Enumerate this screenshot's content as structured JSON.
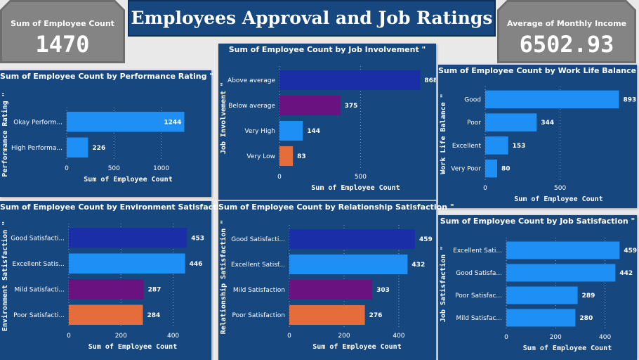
{
  "header": {
    "title": "Employees Approval and Job Ratings",
    "kpi_left": {
      "label": "Sum of Employee Count",
      "value": "1470"
    },
    "kpi_right": {
      "label": "Average of Monthly Income",
      "value": "6502.93"
    }
  },
  "colors": {
    "panel_bg": "#16477f",
    "bar_blue": "#1e8ff5",
    "bar_navy": "#1a2ea8",
    "bar_purple": "#6b1281",
    "bar_orange": "#e46d3b"
  },
  "chart_data": [
    {
      "id": "performance",
      "type": "bar",
      "orientation": "horizontal",
      "title": "Sum of Employee Count by Performance Rating \"",
      "xlabel": "Sum of Employee Count",
      "ylabel": "Performance Rating \"",
      "categories": [
        "Okay Perform...",
        "High Performa..."
      ],
      "values": [
        1244,
        226
      ],
      "bar_colors": [
        "#1e8ff5",
        "#1e8ff5"
      ],
      "xlim": [
        0,
        1300
      ],
      "xticks": [
        0,
        500,
        1000
      ],
      "label_inside": [
        true,
        false
      ]
    },
    {
      "id": "involvement",
      "type": "bar",
      "orientation": "horizontal",
      "title": "Sum of Employee Count by Job Involvement \"",
      "xlabel": "Sum of Employee Count",
      "ylabel": "Job Involvement \"",
      "categories": [
        "Above average",
        "Below average",
        "Very High",
        "Very Low"
      ],
      "values": [
        868,
        375,
        144,
        83
      ],
      "bar_colors": [
        "#1a2ea8",
        "#6b1281",
        "#1e8ff5",
        "#e46d3b"
      ],
      "xlim": [
        0,
        940
      ],
      "xticks": [
        0,
        500
      ]
    },
    {
      "id": "worklife",
      "type": "bar",
      "orientation": "horizontal",
      "title": "Sum of Employee Count by Work Life Balance \"",
      "xlabel": "Sum of Employee Count",
      "ylabel": "Work Life Balance \"",
      "categories": [
        "Good",
        "Poor",
        "Excellent",
        "Very Poor"
      ],
      "values": [
        893,
        344,
        153,
        80
      ],
      "bar_colors": [
        "#1e8ff5",
        "#1e8ff5",
        "#1e8ff5",
        "#1e8ff5"
      ],
      "xlim": [
        0,
        980
      ],
      "xticks": [
        0,
        500
      ]
    },
    {
      "id": "environment",
      "type": "bar",
      "orientation": "horizontal",
      "title": "Sum of Employee Count by Environment Satisfaction \"",
      "xlabel": "Sum of Employee Count",
      "ylabel": "Environment Satisfaction \"",
      "categories": [
        "Good Satisfacti...",
        "Excellent Satis...",
        "Mild Satisfacti...",
        "Poor Satisfacti..."
      ],
      "values": [
        453,
        446,
        287,
        284
      ],
      "bar_colors": [
        "#1a2ea8",
        "#1e8ff5",
        "#6b1281",
        "#e46d3b"
      ],
      "xlim": [
        0,
        490
      ],
      "xticks": [
        0,
        200,
        400
      ]
    },
    {
      "id": "relationship",
      "type": "bar",
      "orientation": "horizontal",
      "title": "Sum of Employee Count by Relationship Satisfaction \"",
      "xlabel": "Sum of Employee Count",
      "ylabel": "Relationship Satisfaction \"",
      "categories": [
        "Good Satisfacti...",
        "Excellent Satisf...",
        "Mild Satisfaction",
        "Poor Satisfaction"
      ],
      "values": [
        459,
        432,
        303,
        276
      ],
      "bar_colors": [
        "#1a2ea8",
        "#1e8ff5",
        "#6b1281",
        "#e46d3b"
      ],
      "xlim": [
        0,
        495
      ],
      "xticks": [
        0,
        200,
        400
      ]
    },
    {
      "id": "jobsat",
      "type": "bar",
      "orientation": "horizontal",
      "title": "Sum of Employee Count by Job Satisfaction \"",
      "xlabel": "Sum of Employee Count",
      "ylabel": "Job Satisfaction \"",
      "categories": [
        "Excellent Sati...",
        "Good Satisfa...",
        "Poor Satisfac...",
        "Mild Satisfac..."
      ],
      "values": [
        459,
        442,
        289,
        280
      ],
      "bar_colors": [
        "#1e8ff5",
        "#1e8ff5",
        "#1e8ff5",
        "#1e8ff5"
      ],
      "xlim": [
        0,
        495
      ],
      "xticks": [
        0,
        200,
        400
      ]
    }
  ]
}
